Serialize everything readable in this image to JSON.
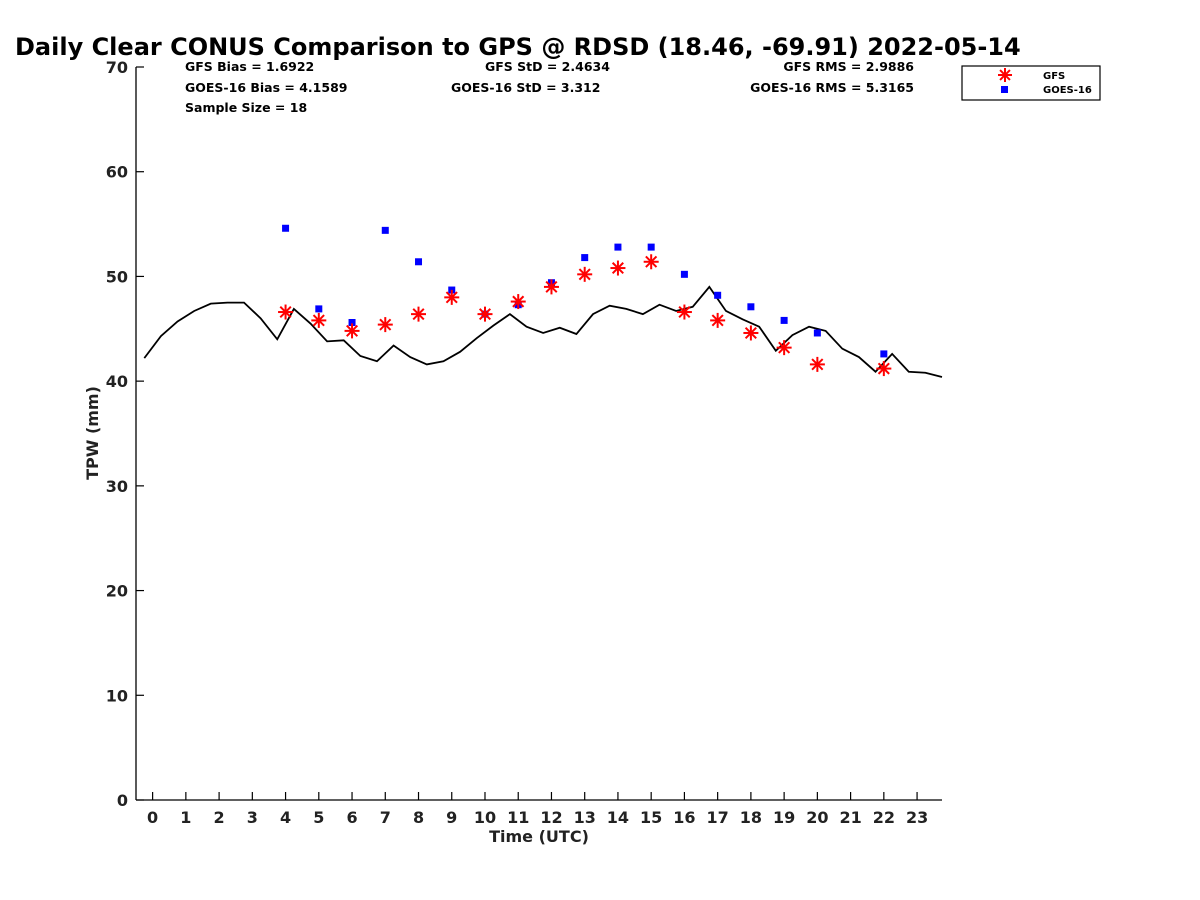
{
  "chart_data": {
    "type": "scatter",
    "title": "Daily Clear CONUS Comparison to GPS @ RDSD (18.46, -69.91) 2022-05-14",
    "xlabel": "Time (UTC)",
    "ylabel": "TPW (mm)",
    "xlim": [
      -0.5,
      23.75
    ],
    "ylim": [
      0,
      70
    ],
    "x_ticks": [
      0,
      1,
      2,
      3,
      4,
      5,
      6,
      7,
      8,
      9,
      10,
      11,
      12,
      13,
      14,
      15,
      16,
      17,
      18,
      19,
      20,
      21,
      22,
      23
    ],
    "y_ticks": [
      0,
      10,
      20,
      30,
      40,
      50,
      60,
      70
    ],
    "grid": false,
    "legend_position": "top-right",
    "stats": {
      "gfs_bias": "GFS Bias = 1.6922",
      "goes_bias": "GOES-16 Bias = 4.1589",
      "sample_size": "Sample Size = 18",
      "gfs_std": "GFS StD = 2.4634",
      "goes_std": "GOES-16 StD = 3.312",
      "gfs_rms": "GFS RMS = 2.9886",
      "goes_rms": "GOES-16 RMS = 5.3165"
    },
    "series": [
      {
        "name": "GFS",
        "marker": "asterisk",
        "color": "#ff0000",
        "x": [
          4,
          5,
          6,
          7,
          8,
          9,
          10,
          11,
          12,
          13,
          14,
          15,
          16,
          17,
          18,
          19,
          20,
          22
        ],
        "y": [
          46.6,
          45.8,
          44.8,
          45.4,
          46.4,
          48.0,
          46.4,
          47.6,
          49.0,
          50.2,
          50.8,
          51.4,
          46.6,
          45.8,
          44.6,
          43.2,
          41.6,
          41.2
        ]
      },
      {
        "name": "GOES-16",
        "marker": "square",
        "color": "#0000ff",
        "x": [
          4,
          5,
          6,
          7,
          8,
          9,
          10,
          11,
          12,
          13,
          14,
          15,
          16,
          17,
          18,
          19,
          20,
          22
        ],
        "y": [
          54.6,
          46.9,
          45.6,
          54.4,
          51.4,
          48.7,
          46.4,
          47.3,
          49.4,
          51.8,
          52.8,
          52.8,
          50.2,
          48.2,
          47.1,
          45.8,
          44.6,
          42.6
        ]
      },
      {
        "marker": "line",
        "color": "#000000",
        "x": [
          -0.25,
          0.25,
          0.75,
          1.25,
          1.75,
          2.25,
          2.75,
          3.25,
          3.75,
          4.25,
          4.75,
          5.25,
          5.75,
          6.25,
          6.75,
          7.25,
          7.75,
          8.25,
          8.75,
          9.25,
          9.75,
          10.25,
          10.75,
          11.25,
          11.75,
          12.25,
          12.75,
          13.25,
          13.75,
          14.25,
          14.75,
          15.25,
          15.75,
          16.25,
          16.75,
          17.25,
          17.75,
          18.25,
          18.75,
          19.25,
          19.75,
          20.25,
          20.75,
          21.25,
          21.75,
          22.25,
          22.75,
          23.25,
          23.75
        ],
        "y": [
          42.2,
          44.3,
          45.7,
          46.7,
          47.4,
          47.5,
          47.5,
          46.0,
          44.0,
          46.9,
          45.5,
          43.8,
          43.9,
          42.4,
          41.9,
          43.4,
          42.3,
          41.6,
          41.9,
          42.8,
          44.1,
          45.3,
          46.4,
          45.2,
          44.6,
          45.1,
          44.5,
          46.4,
          47.2,
          46.9,
          46.4,
          47.3,
          46.7,
          47.1,
          49.0,
          46.7,
          45.9,
          45.2,
          42.9,
          44.4,
          45.2,
          44.8,
          43.1,
          42.3,
          40.9,
          42.6,
          40.9,
          40.8,
          40.4
        ]
      }
    ]
  }
}
